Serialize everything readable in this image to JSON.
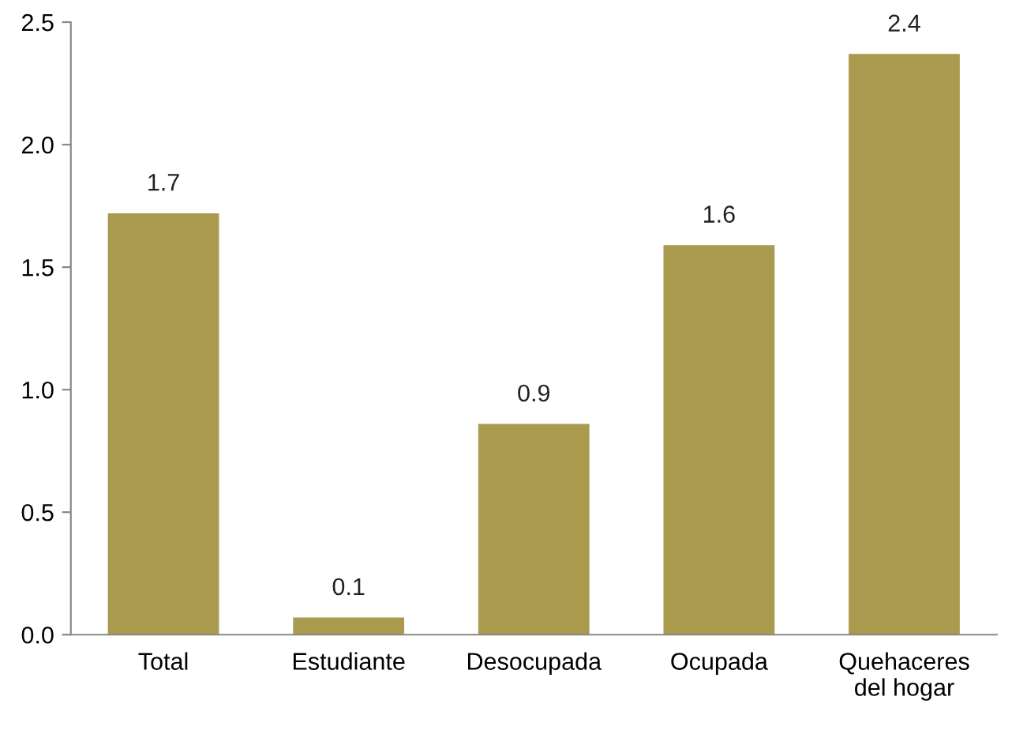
{
  "chart_data": {
    "type": "bar",
    "categories": [
      "Total",
      "Estudiante",
      "Desocupada",
      "Ocupada",
      "Quehaceres\ndel hogar"
    ],
    "values": [
      1.72,
      0.07,
      0.86,
      1.59,
      2.37
    ],
    "value_labels": [
      "1.7",
      "0.1",
      "0.9",
      "1.6",
      "2.4"
    ],
    "color": "#a99a4e",
    "ylim": [
      0,
      2.5
    ],
    "yticks": [
      {
        "value": 0,
        "label": "0.0"
      },
      {
        "value": 0.5,
        "label": "0.5"
      },
      {
        "value": 1,
        "label": "1.0"
      },
      {
        "value": 1.5,
        "label": "1.5"
      },
      {
        "value": 2,
        "label": "2.0"
      },
      {
        "value": 2.5,
        "label": "2.5"
      }
    ],
    "grid": false,
    "legend": false
  }
}
